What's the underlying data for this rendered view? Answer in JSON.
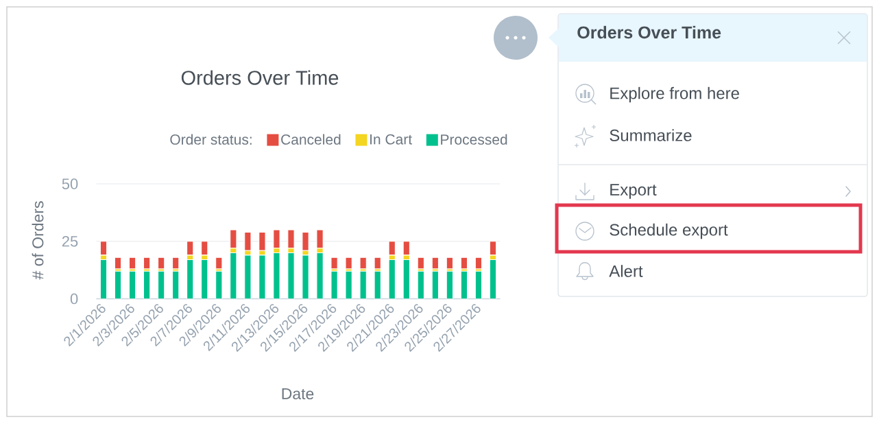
{
  "chart_data": [
    {
      "type": "bar",
      "title": "Orders Over Time",
      "xlabel": "Date",
      "ylabel": "# of Orders",
      "legend_title": "Order status:",
      "categories": [
        "2/1/2026",
        null,
        "2/3/2026",
        null,
        "2/5/2026",
        null,
        "2/7/2026",
        null,
        "2/9/2026",
        null,
        "2/11/2026",
        null,
        "2/13/2026",
        null,
        "2/15/2026",
        null,
        "2/17/2026",
        null,
        "2/19/2026",
        null,
        "2/21/2026",
        null,
        "2/23/2026",
        null,
        "2/25/2026",
        null,
        "2/27/2026",
        null
      ],
      "series": [
        {
          "name": "Processed",
          "color": "#00c18d",
          "values": [
            17,
            12,
            12,
            12,
            12,
            12,
            17,
            17,
            12,
            20,
            19,
            19,
            20,
            20,
            19,
            20,
            12,
            12,
            12,
            12,
            17,
            17,
            12,
            12,
            12,
            12,
            12,
            17
          ]
        },
        {
          "name": "In Cart",
          "color": "#f4d521",
          "values": [
            2,
            1,
            1,
            1,
            1,
            1,
            2,
            2,
            1,
            2,
            2,
            2,
            2,
            2,
            2,
            2,
            1,
            1,
            1,
            1,
            2,
            2,
            1,
            1,
            1,
            1,
            1,
            2
          ]
        },
        {
          "name": "Canceled",
          "color": "#e54d42",
          "values": [
            6,
            5,
            5,
            5,
            5,
            5,
            6,
            6,
            5,
            8,
            8,
            8,
            8,
            8,
            8,
            8,
            5,
            5,
            5,
            5,
            6,
            6,
            5,
            5,
            5,
            5,
            5,
            6
          ]
        }
      ],
      "stacked": true,
      "ylim": [
        0,
        50
      ],
      "yticks": [
        0,
        25,
        50
      ],
      "grid": "y",
      "legend": "top"
    },
    {
      "type": "other",
      "title": "Orders Over Time",
      "annotations": [
        "Explore from here",
        "Summarize",
        "Export",
        "Schedule export",
        "Alert"
      ]
    }
  ]
}
